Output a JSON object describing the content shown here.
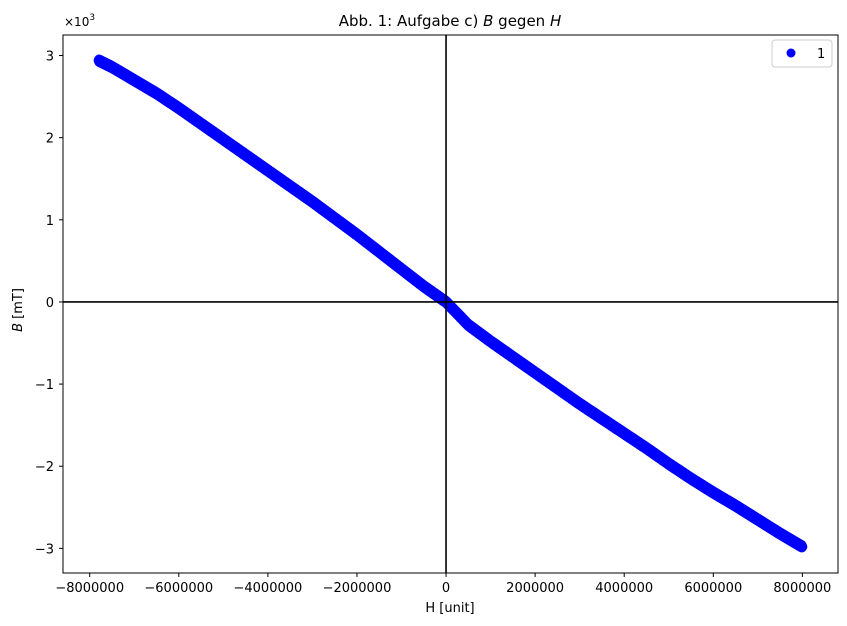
{
  "chart_data": {
    "type": "scatter",
    "title_prefix": "Abb. 1: Aufgabe c) ",
    "title_b": "B",
    "title_mid": " gegen ",
    "title_h": "H",
    "xlabel": "H [unit]",
    "ylabel_var": "B",
    "ylabel_unit": " [mT]",
    "y_multiplier_base": "×10",
    "y_multiplier_exp": "3",
    "xlim": [
      -8600000,
      8800000
    ],
    "ylim": [
      -3.3,
      3.25
    ],
    "x_ticks": [
      -8000000,
      -6000000,
      -4000000,
      -2000000,
      0,
      2000000,
      4000000,
      6000000,
      8000000
    ],
    "x_tick_labels": [
      "−8000000",
      "−6000000",
      "−4000000",
      "−2000000",
      "0",
      "2000000",
      "4000000",
      "6000000",
      "8000000"
    ],
    "y_ticks": [
      -3,
      -2,
      -1,
      0,
      1,
      2,
      3
    ],
    "y_tick_labels": [
      "−3",
      "−2",
      "−1",
      "0",
      "1",
      "2",
      "3"
    ],
    "grid": false,
    "legend_position": "top-right",
    "series": [
      {
        "name": "1",
        "color": "#0000ff",
        "marker": "circle",
        "x": [
          -7800000,
          -7500000,
          -7000000,
          -6500000,
          -6000000,
          -5500000,
          -5000000,
          -4500000,
          -4000000,
          -3500000,
          -3000000,
          -2500000,
          -2000000,
          -1500000,
          -1000000,
          -500000,
          0,
          500000,
          1000000,
          1500000,
          2000000,
          2500000,
          3000000,
          3500000,
          4000000,
          4500000,
          5000000,
          5500000,
          6000000,
          6500000,
          7000000,
          7500000,
          8000000
        ],
        "y": [
          2.94,
          2.86,
          2.7,
          2.54,
          2.36,
          2.17,
          1.98,
          1.79,
          1.6,
          1.41,
          1.22,
          1.02,
          0.82,
          0.61,
          0.4,
          0.19,
          0.0,
          -0.28,
          -0.48,
          -0.67,
          -0.86,
          -1.05,
          -1.24,
          -1.42,
          -1.6,
          -1.78,
          -1.97,
          -2.15,
          -2.32,
          -2.48,
          -2.65,
          -2.82,
          -2.98
        ]
      }
    ]
  }
}
